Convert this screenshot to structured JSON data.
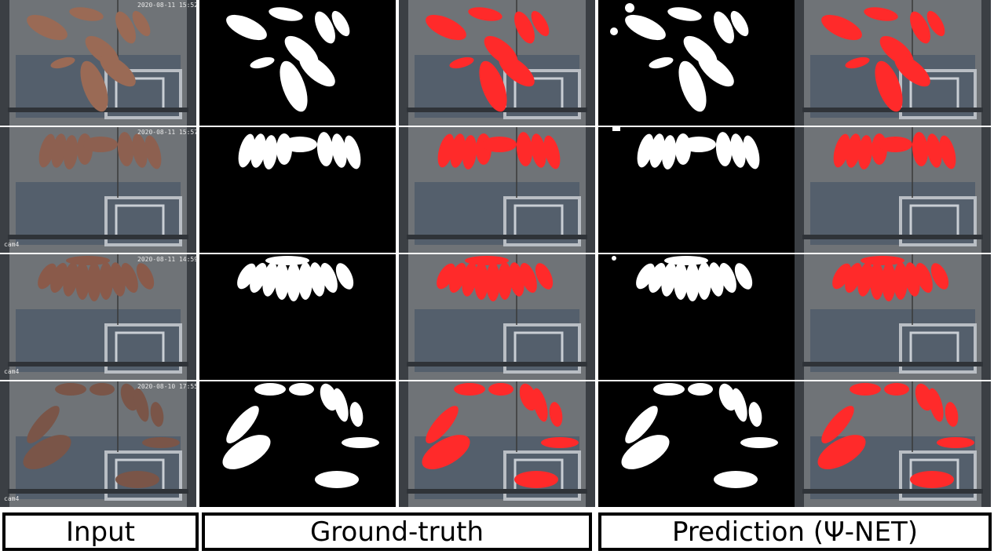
{
  "labels": {
    "input": "Input",
    "ground_truth": "Ground-truth",
    "prediction": "Prediction (Ψ-NET)"
  },
  "rows": [
    {
      "timestamp": "2020-08-11 15:52:20",
      "cam": ""
    },
    {
      "timestamp": "2020-08-11 15:57:31",
      "cam": "cam4"
    },
    {
      "timestamp": "2020-08-11 14:59:59",
      "cam": "cam4"
    },
    {
      "timestamp": "2020-08-10 17:55:15",
      "cam": "cam4"
    }
  ],
  "colors": {
    "overlay": "#ff2a2a",
    "mask_bg": "#000000",
    "mask_fg": "#ffffff",
    "floor": "#6f7377",
    "pig": "#9a6a55"
  }
}
